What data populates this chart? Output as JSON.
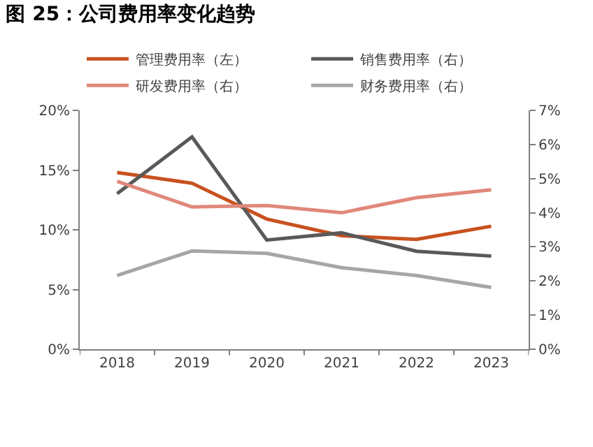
{
  "chart_data": {
    "type": "line",
    "title": "图 25：公司费用率变化趋势",
    "categories": [
      "2018",
      "2019",
      "2020",
      "2021",
      "2022",
      "2023"
    ],
    "series": [
      {
        "name": "管理费用率（左）",
        "color": "#c8511f",
        "values": [
          14.8,
          13.9,
          10.9,
          9.5,
          9.2,
          10.3
        ]
      },
      {
        "name": "销售费用率（右）",
        "color": "#595959",
        "axis": "y2",
        "values": [
          4.56,
          6.22,
          3.2,
          3.41,
          2.87,
          2.73
        ]
      },
      {
        "name": "研发费用率（右）",
        "color": "#e0887a",
        "axis": "y2",
        "values": [
          4.92,
          4.17,
          4.21,
          4.0,
          4.44,
          4.67
        ]
      },
      {
        "name": "财务费用率（右）",
        "color": "#a6a6a6",
        "axis": "y2",
        "values": [
          2.16,
          2.88,
          2.81,
          2.39,
          2.16,
          1.81
        ]
      }
    ],
    "ylim": [
      0,
      20
    ],
    "yticks": [
      {
        "value": 0,
        "label": "0%"
      },
      {
        "value": 5,
        "label": "5%"
      },
      {
        "value": 10,
        "label": "10%"
      },
      {
        "value": 15,
        "label": "15%"
      },
      {
        "value": 20,
        "label": "20%"
      }
    ],
    "y2lim": [
      0,
      7
    ],
    "y2ticks": [
      {
        "value": 0,
        "label": "0%"
      },
      {
        "value": 1,
        "label": "1%"
      },
      {
        "value": 2,
        "label": "2%"
      },
      {
        "value": 3,
        "label": "3%"
      },
      {
        "value": 4,
        "label": "4%"
      },
      {
        "value": 5,
        "label": "5%"
      },
      {
        "value": 6,
        "label": "6%"
      },
      {
        "value": 7,
        "label": "7%"
      }
    ],
    "legend": "top",
    "marker": "none",
    "line_style": "solid"
  }
}
